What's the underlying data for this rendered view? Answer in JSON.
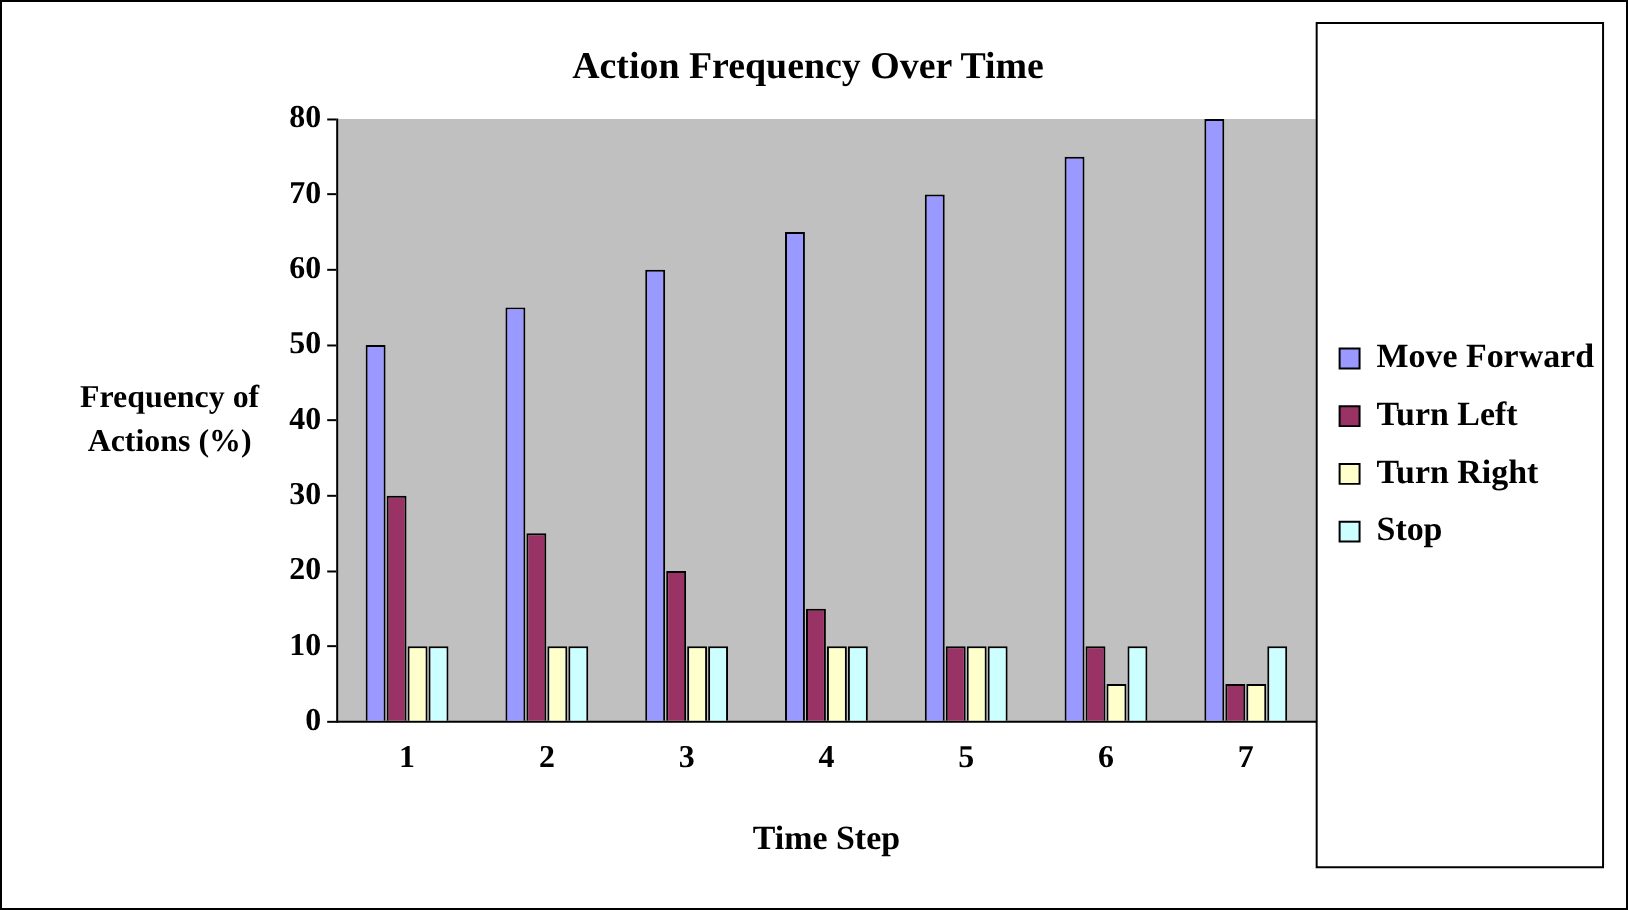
{
  "chart_data": {
    "type": "bar",
    "title": "Action Frequency Over Time",
    "xlabel": "Time Step",
    "ylabel": "Frequency of Actions (%)",
    "categories": [
      "1",
      "2",
      "3",
      "4",
      "5",
      "6",
      "7"
    ],
    "series": [
      {
        "name": "Move Forward",
        "color": "#9999ff",
        "values": [
          50,
          55,
          60,
          65,
          70,
          75,
          80
        ]
      },
      {
        "name": "Turn Left",
        "color": "#993366",
        "values": [
          30,
          25,
          20,
          15,
          10,
          10,
          5
        ]
      },
      {
        "name": "Turn Right",
        "color": "#ffffcc",
        "values": [
          10,
          10,
          10,
          10,
          10,
          5,
          5
        ]
      },
      {
        "name": "Stop",
        "color": "#ccffff",
        "values": [
          10,
          10,
          10,
          10,
          10,
          10,
          10
        ]
      }
    ],
    "ylim": [
      0,
      80
    ],
    "yticks": [
      0,
      10,
      20,
      30,
      40,
      50,
      60,
      70,
      80
    ],
    "grid": false,
    "legend": "right"
  }
}
